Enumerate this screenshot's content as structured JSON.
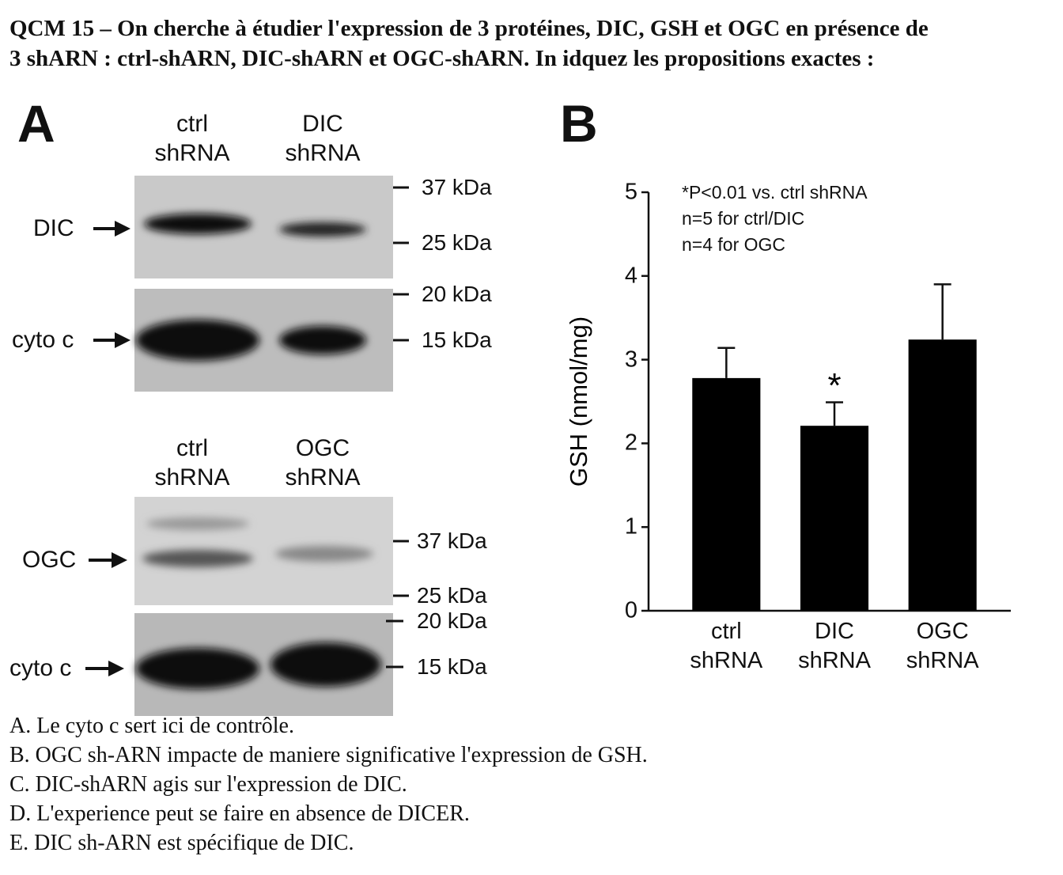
{
  "question": {
    "lines": [
      "QCM 15 – On cherche à étudier l'expression de 3 protéines, DIC, GSH et OGC en présence de",
      "3 shARN : ctrl-shARN, DIC-shARN et OGC-shARN. In idquez les propositions exactes :"
    ]
  },
  "panel_a": {
    "letter": "A",
    "top": {
      "lanes": [
        "ctrl shRNA",
        "DIC shRNA"
      ],
      "rows": [
        "DIC",
        "cyto c"
      ],
      "markers": [
        "37 kDa",
        "25 kDa",
        "20 kDa",
        "15 kDa"
      ]
    },
    "bottom": {
      "lanes": [
        "ctrl shRNA",
        "OGC shRNA"
      ],
      "rows": [
        "OGC",
        "cyto c"
      ],
      "markers": [
        "37 kDa",
        "25 kDa",
        "20 kDa",
        "15 kDa"
      ]
    }
  },
  "chart_data": {
    "type": "bar",
    "panel_letter": "B",
    "y_label": "GSH (nmol/mg)",
    "notes": [
      "*P<0.01 vs. ctrl shRNA",
      "n=5 for ctrl/DIC",
      "n=4 for OGC"
    ],
    "categories": [
      "ctrl shRNA",
      "DIC shRNA",
      "OGC shRNA"
    ],
    "values": [
      2.78,
      2.21,
      3.24
    ],
    "errors": [
      0.36,
      0.28,
      0.66
    ],
    "annotations": [
      null,
      "*",
      null
    ],
    "color": "#000000",
    "ylim": [
      0,
      5
    ],
    "yticks": [
      0,
      1,
      2,
      3,
      4,
      5
    ]
  },
  "options": [
    "A. Le cyto c sert ici de contrôle.",
    "B. OGC sh-ARN impacte de maniere significative l'expression de GSH.",
    "C. DIC-shARN agis sur l'expression de DIC.",
    "D. L'experience peut se faire en absence de DICER.",
    "E. DIC sh-ARN est spécifique de DIC."
  ]
}
